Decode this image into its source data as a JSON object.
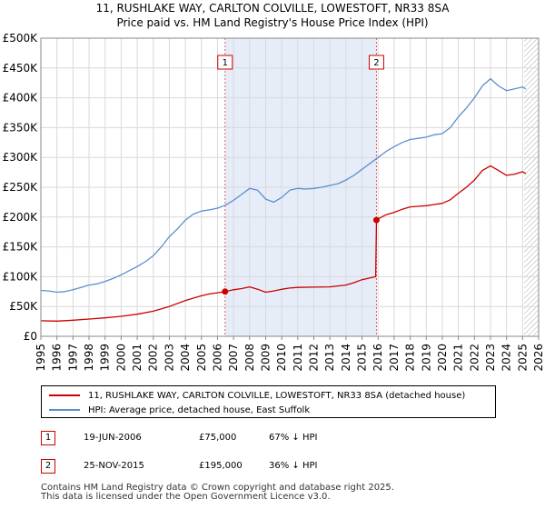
{
  "title": "11, RUSHLAKE WAY, CARLTON COLVILLE, LOWESTOFT, NR33 8SA",
  "subtitle": "Price paid vs. HM Land Registry's House Price Index (HPI)",
  "colors": {
    "hpi": "#5b8fd0",
    "price": "#cc0000",
    "shade": "#e6edf9",
    "grid": "#d9d9d9"
  },
  "chart_data": {
    "type": "line",
    "xlim": [
      1995,
      2026
    ],
    "ylim": [
      0,
      500000
    ],
    "x_ticks": [
      "1995",
      "1996",
      "1997",
      "1998",
      "1999",
      "2000",
      "2001",
      "2002",
      "2003",
      "2004",
      "2005",
      "2006",
      "2007",
      "2008",
      "2009",
      "2010",
      "2011",
      "2012",
      "2013",
      "2014",
      "2015",
      "2016",
      "2017",
      "2018",
      "2019",
      "2020",
      "2021",
      "2022",
      "2023",
      "2024",
      "2025",
      "2026"
    ],
    "y_ticks": [
      {
        "value": 0,
        "label": "£0"
      },
      {
        "value": 50000,
        "label": "£50K"
      },
      {
        "value": 100000,
        "label": "£100K"
      },
      {
        "value": 150000,
        "label": "£150K"
      },
      {
        "value": 200000,
        "label": "£200K"
      },
      {
        "value": 250000,
        "label": "£250K"
      },
      {
        "value": 300000,
        "label": "£300K"
      },
      {
        "value": 350000,
        "label": "£350K"
      },
      {
        "value": 400000,
        "label": "£400K"
      },
      {
        "value": 450000,
        "label": "£450K"
      },
      {
        "value": 500000,
        "label": "£500K"
      }
    ],
    "shaded_range": [
      2006.47,
      2015.9
    ],
    "hatched_from": 2025.1,
    "series": [
      {
        "name": "HPI: Average price, detached house, East Suffolk",
        "color": "#5b8fd0",
        "points": [
          [
            1995.0,
            77000
          ],
          [
            1995.5,
            76000
          ],
          [
            1996.0,
            74000
          ],
          [
            1996.5,
            75000
          ],
          [
            1997.0,
            78000
          ],
          [
            1997.5,
            82000
          ],
          [
            1998.0,
            86000
          ],
          [
            1998.5,
            88000
          ],
          [
            1999.0,
            92000
          ],
          [
            1999.5,
            97000
          ],
          [
            2000.0,
            103000
          ],
          [
            2000.5,
            110000
          ],
          [
            2001.0,
            117000
          ],
          [
            2001.5,
            125000
          ],
          [
            2002.0,
            135000
          ],
          [
            2002.5,
            150000
          ],
          [
            2003.0,
            167000
          ],
          [
            2003.5,
            180000
          ],
          [
            2004.0,
            195000
          ],
          [
            2004.5,
            205000
          ],
          [
            2005.0,
            210000
          ],
          [
            2005.5,
            212000
          ],
          [
            2006.0,
            215000
          ],
          [
            2006.5,
            220000
          ],
          [
            2007.0,
            228000
          ],
          [
            2007.5,
            238000
          ],
          [
            2008.0,
            248000
          ],
          [
            2008.5,
            245000
          ],
          [
            2009.0,
            230000
          ],
          [
            2009.5,
            225000
          ],
          [
            2010.0,
            233000
          ],
          [
            2010.5,
            245000
          ],
          [
            2011.0,
            248000
          ],
          [
            2011.5,
            247000
          ],
          [
            2012.0,
            248000
          ],
          [
            2012.5,
            250000
          ],
          [
            2013.0,
            253000
          ],
          [
            2013.5,
            256000
          ],
          [
            2014.0,
            262000
          ],
          [
            2014.5,
            270000
          ],
          [
            2015.0,
            280000
          ],
          [
            2015.5,
            290000
          ],
          [
            2016.0,
            300000
          ],
          [
            2016.5,
            310000
          ],
          [
            2017.0,
            318000
          ],
          [
            2017.5,
            325000
          ],
          [
            2018.0,
            330000
          ],
          [
            2018.5,
            332000
          ],
          [
            2019.0,
            334000
          ],
          [
            2019.5,
            338000
          ],
          [
            2020.0,
            340000
          ],
          [
            2020.5,
            350000
          ],
          [
            2021.0,
            368000
          ],
          [
            2021.5,
            383000
          ],
          [
            2022.0,
            400000
          ],
          [
            2022.5,
            420000
          ],
          [
            2023.0,
            432000
          ],
          [
            2023.5,
            420000
          ],
          [
            2024.0,
            412000
          ],
          [
            2024.5,
            415000
          ],
          [
            2025.0,
            418000
          ],
          [
            2025.2,
            415000
          ]
        ]
      },
      {
        "name": "11, RUSHLAKE WAY, CARLTON COLVILLE, LOWESTOFT, NR33 8SA (detached house)",
        "color": "#cc0000",
        "points": [
          [
            1995.0,
            26000
          ],
          [
            1996.0,
            25500
          ],
          [
            1997.0,
            27000
          ],
          [
            1998.0,
            29000
          ],
          [
            1999.0,
            31000
          ],
          [
            2000.0,
            33500
          ],
          [
            2001.0,
            37000
          ],
          [
            2002.0,
            42000
          ],
          [
            2003.0,
            50000
          ],
          [
            2004.0,
            60000
          ],
          [
            2005.0,
            68000
          ],
          [
            2005.5,
            71000
          ],
          [
            2006.0,
            73000
          ],
          [
            2006.47,
            75000
          ],
          [
            2007.0,
            78000
          ],
          [
            2007.5,
            80000
          ],
          [
            2008.0,
            83000
          ],
          [
            2008.5,
            79000
          ],
          [
            2009.0,
            74000
          ],
          [
            2009.5,
            76000
          ],
          [
            2010.0,
            79000
          ],
          [
            2010.5,
            81000
          ],
          [
            2011.0,
            82000
          ],
          [
            2012.0,
            82500
          ],
          [
            2013.0,
            83000
          ],
          [
            2014.0,
            86000
          ],
          [
            2014.5,
            90000
          ],
          [
            2015.0,
            95000
          ],
          [
            2015.85,
            100000
          ],
          [
            2015.9,
            195000
          ],
          [
            2016.0,
            197000
          ],
          [
            2016.5,
            204000
          ],
          [
            2017.0,
            208000
          ],
          [
            2017.5,
            213000
          ],
          [
            2018.0,
            217000
          ],
          [
            2018.5,
            218000
          ],
          [
            2019.0,
            219000
          ],
          [
            2019.5,
            221000
          ],
          [
            2020.0,
            223000
          ],
          [
            2020.5,
            229000
          ],
          [
            2021.0,
            240000
          ],
          [
            2021.5,
            250000
          ],
          [
            2022.0,
            262000
          ],
          [
            2022.5,
            278000
          ],
          [
            2023.0,
            286000
          ],
          [
            2023.5,
            278000
          ],
          [
            2024.0,
            270000
          ],
          [
            2024.5,
            272000
          ],
          [
            2025.0,
            276000
          ],
          [
            2025.2,
            273000
          ]
        ]
      }
    ],
    "markers": [
      {
        "label": "1",
        "x": 2006.47,
        "y": 75000
      },
      {
        "label": "2",
        "x": 2015.9,
        "y": 195000
      }
    ]
  },
  "legend": {
    "price_label": "11, RUSHLAKE WAY, CARLTON COLVILLE, LOWESTOFT, NR33 8SA (detached house)",
    "hpi_label": "HPI: Average price, detached house, East Suffolk"
  },
  "transactions": [
    {
      "num": "1",
      "date": "19-JUN-2006",
      "price": "£75,000",
      "hpi": "67% ↓ HPI"
    },
    {
      "num": "2",
      "date": "25-NOV-2015",
      "price": "£195,000",
      "hpi": "36% ↓ HPI"
    }
  ],
  "footer": {
    "line1": "Contains HM Land Registry data © Crown copyright and database right 2025.",
    "line2": "This data is licensed under the Open Government Licence v3.0."
  }
}
